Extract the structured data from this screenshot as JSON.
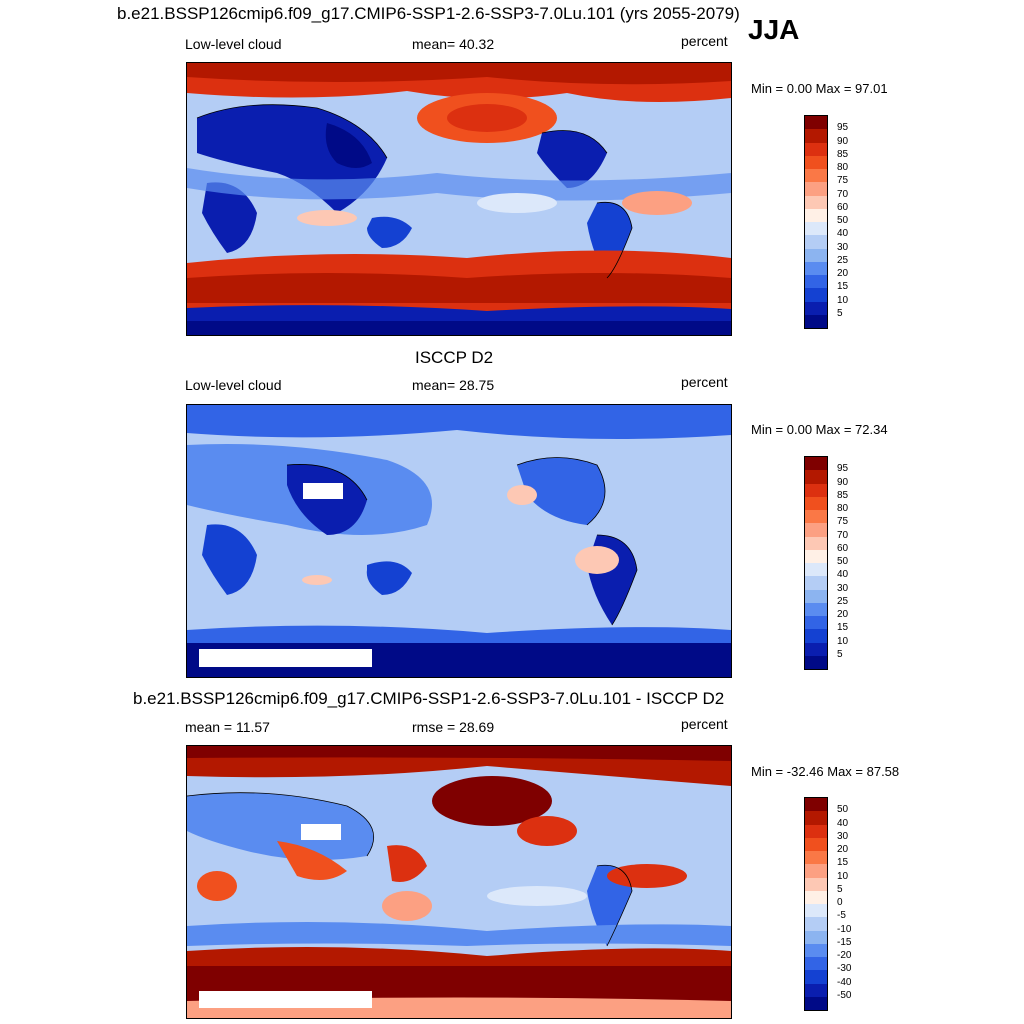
{
  "season": "JJA",
  "panels": [
    {
      "title": "b.e21.BSSP126cmip6.f09_g17.CMIP6-SSP1-2.6-SSP3-7.0Lu.101 (yrs 2055-2079)",
      "left_label": "Low-level cloud",
      "center_label": "mean=  40.32",
      "units": "percent",
      "minmax": "Min =   0.00 Max =  97.01"
    },
    {
      "title": "ISCCP D2",
      "left_label": "Low-level cloud",
      "center_label": "mean=  28.75",
      "units": "percent",
      "minmax": "Min =   0.00 Max =  72.34"
    },
    {
      "title": "b.e21.BSSP126cmip6.f09_g17.CMIP6-SSP1-2.6-SSP3-7.0Lu.101 - ISCCP D2",
      "left_label": "mean =  11.57",
      "center_label": "rmse =  28.69",
      "units": "percent",
      "minmax": "Min = -32.46 Max =  87.58"
    }
  ],
  "colorbar_abs": {
    "labels": [
      "95",
      "90",
      "85",
      "80",
      "75",
      "70",
      "60",
      "50",
      "40",
      "30",
      "25",
      "20",
      "15",
      "10",
      "5"
    ],
    "colors": [
      "#7f0000",
      "#b31800",
      "#dc3010",
      "#f0501e",
      "#fa7846",
      "#fca082",
      "#fdc8b4",
      "#fff0e6",
      "#dce8fa",
      "#b4cdf5",
      "#8cb4f0",
      "#5a8cf0",
      "#3264e6",
      "#1441d2",
      "#0a1eaf",
      "#000a87"
    ]
  },
  "colorbar_diff": {
    "labels": [
      "50",
      "40",
      "30",
      "20",
      "15",
      "10",
      "5",
      "0",
      "-5",
      "-10",
      "-15",
      "-20",
      "-30",
      "-40",
      "-50"
    ],
    "colors": [
      "#7f0000",
      "#b31800",
      "#dc3010",
      "#f0501e",
      "#fa7846",
      "#fca082",
      "#fdc8b4",
      "#fff0e6",
      "#dce8fa",
      "#b4cdf5",
      "#8cb4f0",
      "#5a8cf0",
      "#3264e6",
      "#1441d2",
      "#0a1eaf",
      "#000a87"
    ]
  }
}
